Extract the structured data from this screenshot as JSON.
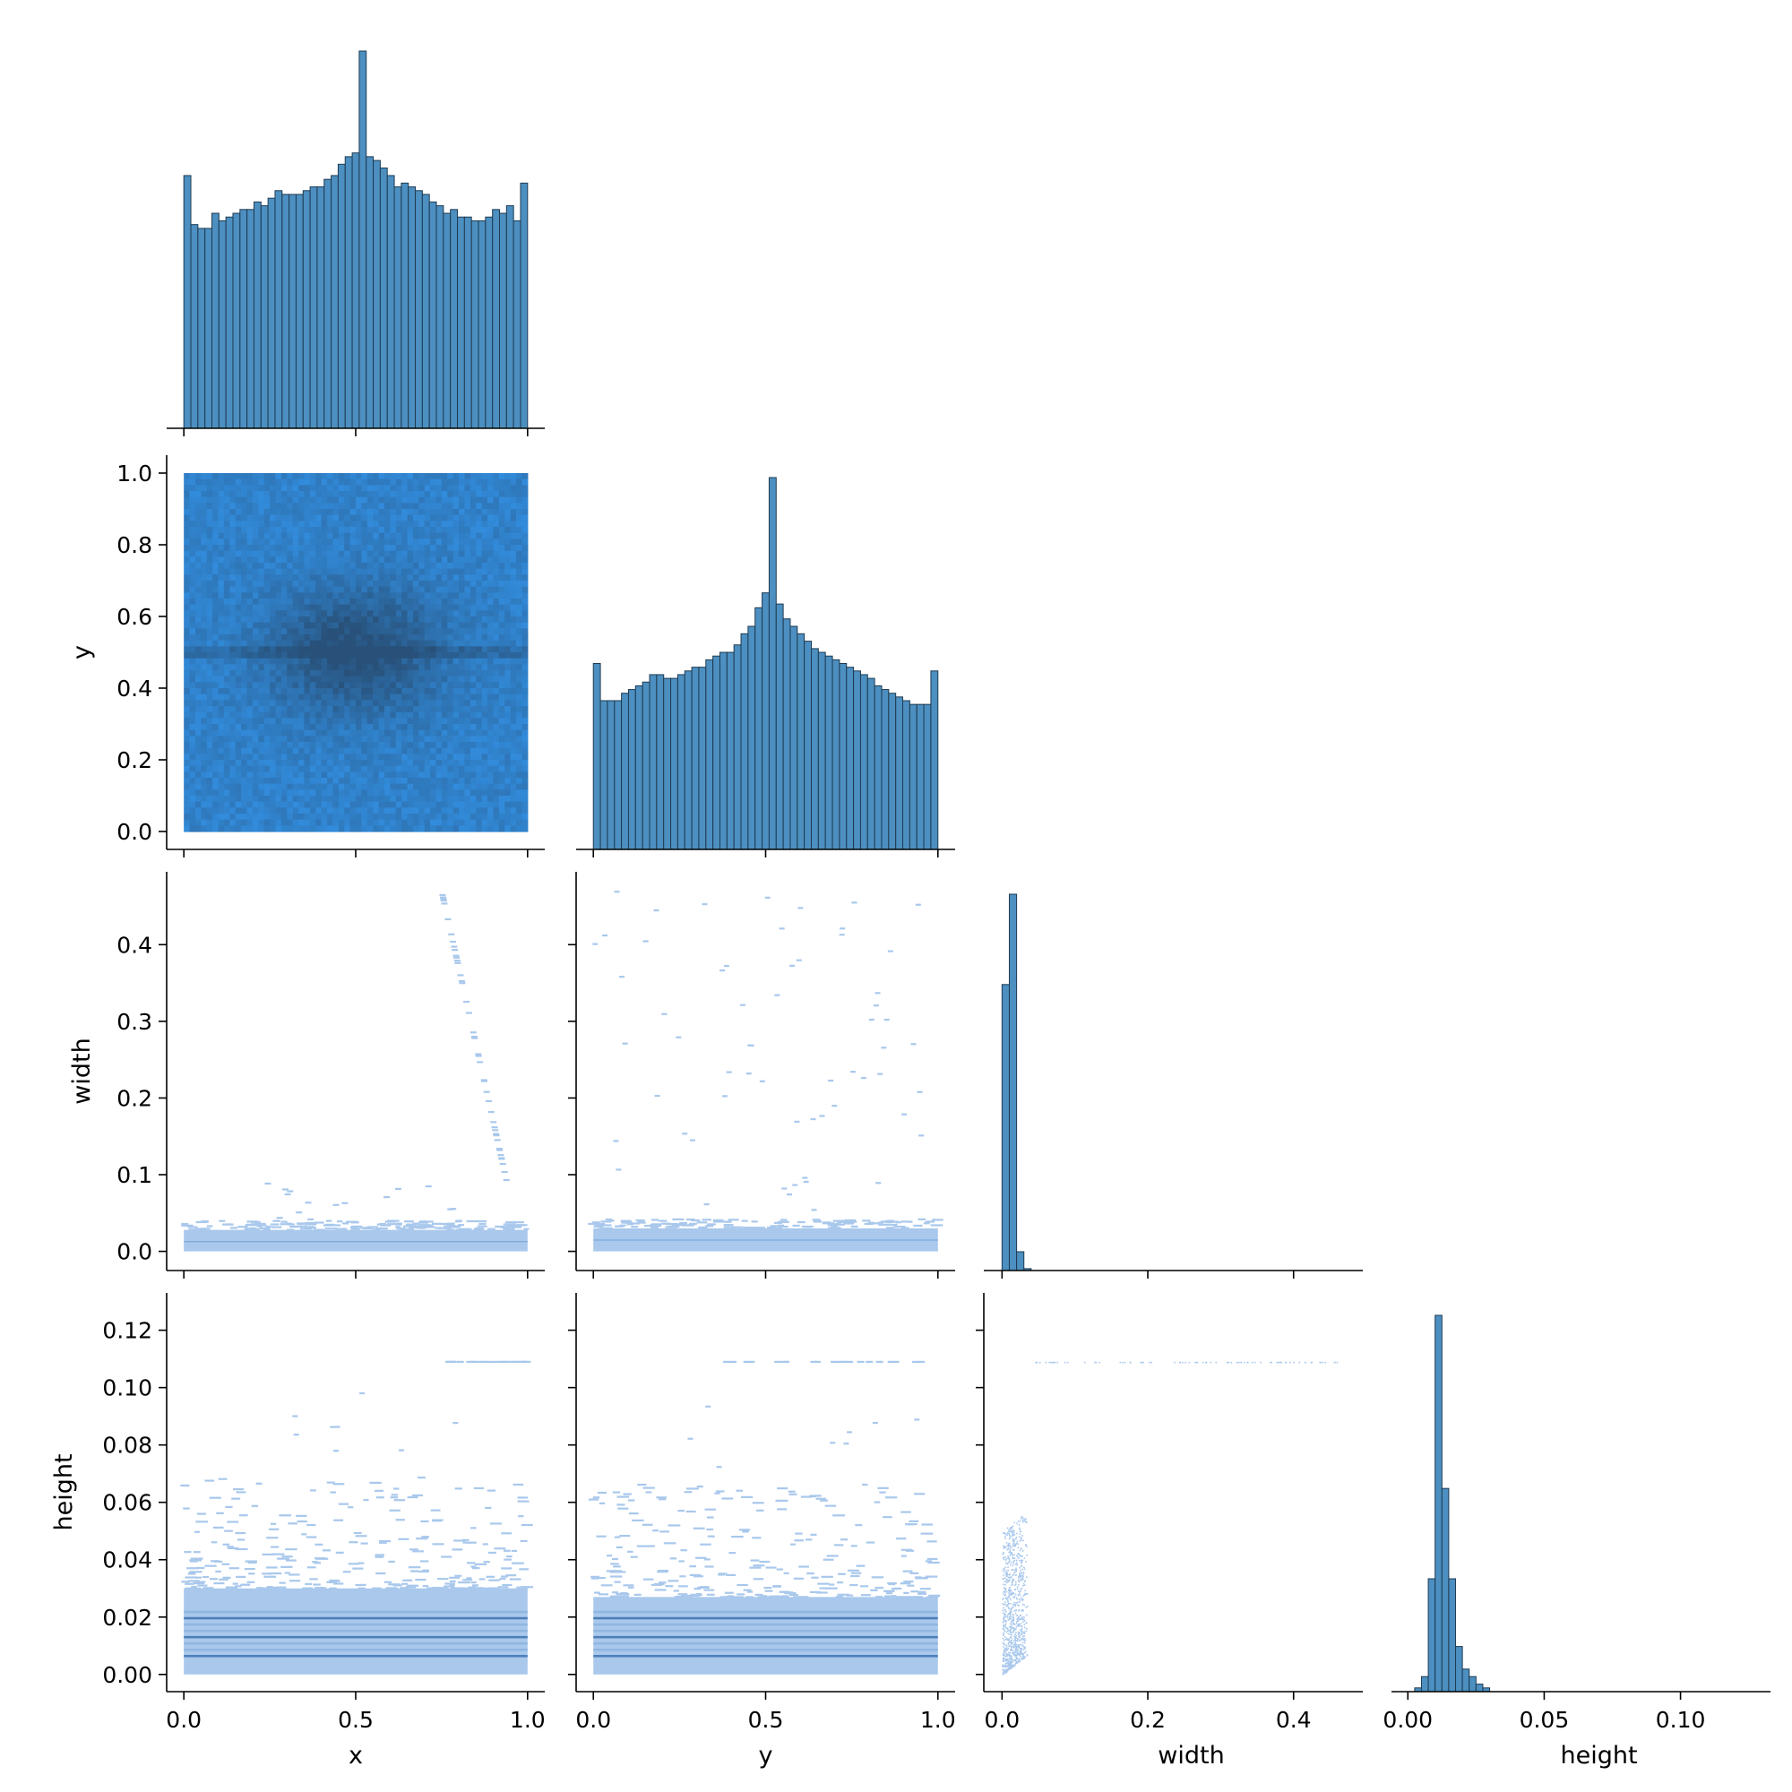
{
  "chart_data": {
    "type": "pairplot",
    "variables": [
      "x",
      "y",
      "width",
      "height"
    ],
    "corner": true,
    "colors": {
      "bar": "#4c8fc0",
      "bar_edge": "#1f3b52",
      "hist2d_low": "#a9c8ec",
      "hist2d_high": "#3b5a7a",
      "dense_base": "#2b8cdf"
    },
    "axis_ranges": {
      "x": [
        -0.05,
        1.05
      ],
      "y": [
        -0.05,
        1.05
      ],
      "width": [
        -0.025,
        0.495
      ],
      "height": [
        -0.006,
        0.133
      ]
    },
    "ticks": {
      "x": [
        0.0,
        0.5,
        1.0
      ],
      "y": [
        0.0,
        0.5,
        1.0
      ],
      "width": [
        0.0,
        0.2,
        0.4
      ],
      "height": [
        0.0,
        0.05,
        0.1
      ],
      "y_on_row_y": [
        0.0,
        0.2,
        0.4,
        0.6,
        0.8,
        1.0
      ],
      "width_on_row": [
        0.0,
        0.1,
        0.2,
        0.3,
        0.4
      ],
      "height_on_row": [
        0.0,
        0.02,
        0.04,
        0.06,
        0.08,
        0.1,
        0.12
      ]
    },
    "tick_labels": {
      "x": [
        "0.0",
        "0.5",
        "1.0"
      ],
      "y": [
        "0.0",
        "0.5",
        "1.0"
      ],
      "width": [
        "0.0",
        "0.2",
        "0.4"
      ],
      "height": [
        "0.00",
        "0.05",
        "0.10"
      ],
      "y_on_row_y": [
        "0.0",
        "0.2",
        "0.4",
        "0.6",
        "0.8",
        "1.0"
      ],
      "width_on_row": [
        "0.0",
        "0.1",
        "0.2",
        "0.3",
        "0.4"
      ],
      "height_on_row": [
        "0.00",
        "0.02",
        "0.04",
        "0.06",
        "0.08",
        "0.10",
        "0.12"
      ]
    },
    "axis_labels": {
      "x": "x",
      "y": "y",
      "width": "width",
      "height": "height"
    },
    "hist_x": {
      "bin_edges_range": [
        0.0,
        1.0
      ],
      "counts": [
        0.67,
        0.54,
        0.53,
        0.53,
        0.57,
        0.55,
        0.56,
        0.57,
        0.58,
        0.58,
        0.6,
        0.59,
        0.61,
        0.63,
        0.62,
        0.62,
        0.62,
        0.63,
        0.64,
        0.64,
        0.66,
        0.67,
        0.7,
        0.72,
        0.73,
        1.0,
        0.72,
        0.71,
        0.69,
        0.67,
        0.64,
        0.65,
        0.64,
        0.63,
        0.62,
        0.6,
        0.59,
        0.57,
        0.58,
        0.56,
        0.56,
        0.55,
        0.55,
        0.56,
        0.58,
        0.57,
        0.59,
        0.55,
        0.65
      ]
    },
    "hist_y": {
      "bin_edges_range": [
        0.0,
        1.0
      ],
      "counts": [
        0.5,
        0.4,
        0.4,
        0.4,
        0.42,
        0.43,
        0.44,
        0.45,
        0.47,
        0.47,
        0.46,
        0.46,
        0.47,
        0.48,
        0.49,
        0.49,
        0.51,
        0.52,
        0.53,
        0.53,
        0.55,
        0.58,
        0.6,
        0.65,
        0.69,
        1.0,
        0.66,
        0.62,
        0.6,
        0.58,
        0.56,
        0.54,
        0.53,
        0.52,
        0.51,
        0.5,
        0.49,
        0.48,
        0.47,
        0.46,
        0.44,
        0.43,
        0.42,
        0.41,
        0.4,
        0.39,
        0.39,
        0.39,
        0.48
      ]
    },
    "hist_width": {
      "bin_width": 0.01,
      "bin_starts": [
        0.0,
        0.01,
        0.02,
        0.03
      ],
      "counts": [
        0.76,
        1.0,
        0.05,
        0.005
      ]
    },
    "hist_height": {
      "bin_width": 0.0025,
      "bin_starts": [
        0.0025,
        0.005,
        0.0075,
        0.01,
        0.0125,
        0.015,
        0.0175,
        0.02,
        0.0225,
        0.025,
        0.0275
      ],
      "counts": [
        0.01,
        0.04,
        0.3,
        1.0,
        0.54,
        0.3,
        0.12,
        0.06,
        0.04,
        0.02,
        0.01
      ]
    }
  }
}
